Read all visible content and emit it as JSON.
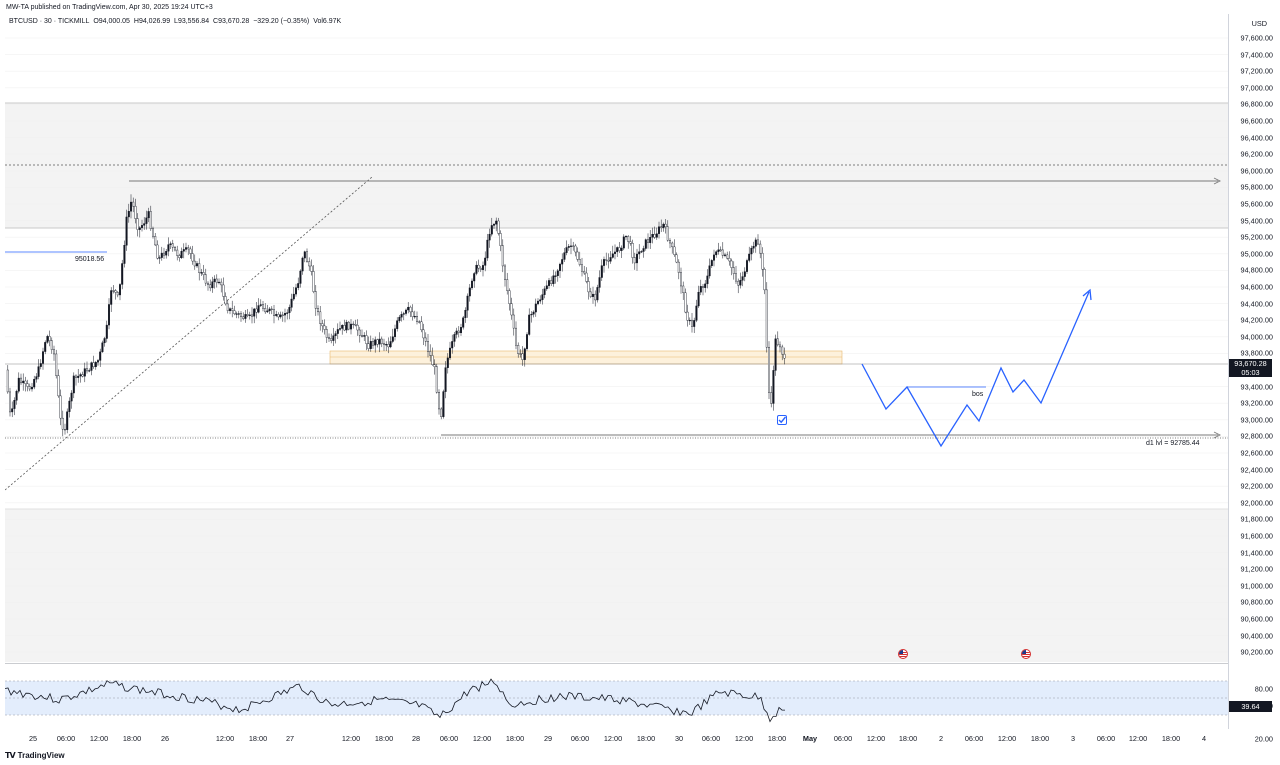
{
  "header": {
    "publisher": "MW-TA published on TradingView.com, Apr 30, 2025 19:24 UTC+3"
  },
  "legend": {
    "symbol": "BTCUSD · 30 · TICKMILL",
    "open": "O94,000.05",
    "high": "H94,026.99",
    "low": "L93,556.84",
    "close": "C93,670.28",
    "change": "−329.20 (−0.35%)",
    "volume": "Vol6.97K"
  },
  "price_axis": {
    "currency": "USD",
    "labels": [
      "97,600.00",
      "97,400.00",
      "97,200.00",
      "97,000.00",
      "96,800.00",
      "96,600.00",
      "96,400.00",
      "96,200.00",
      "96,000.00",
      "95,800.00",
      "95,600.00",
      "95,400.00",
      "95,200.00",
      "95,000.00",
      "94,800.00",
      "94,600.00",
      "94,400.00",
      "94,200.00",
      "94,000.00",
      "93,800.00",
      "93,400.00",
      "93,200.00",
      "93,000.00",
      "92,800.00",
      "92,600.00",
      "92,400.00",
      "92,200.00",
      "92,000.00",
      "91,800.00",
      "91,600.00",
      "91,400.00",
      "91,200.00",
      "91,000.00",
      "90,800.00",
      "90,600.00",
      "90,400.00",
      "90,200.00"
    ],
    "current_price": "93,670.28",
    "countdown": "05:03"
  },
  "rsi_axis": {
    "labels": [
      "80.00",
      "60.00",
      "20.00"
    ],
    "current_value": "39.64"
  },
  "time_axis": {
    "labels": [
      {
        "text": "25",
        "bold": false
      },
      {
        "text": "06:00",
        "bold": false
      },
      {
        "text": "12:00",
        "bold": false
      },
      {
        "text": "18:00",
        "bold": false
      },
      {
        "text": "26",
        "bold": false
      },
      {
        "text": "12:00",
        "bold": false
      },
      {
        "text": "18:00",
        "bold": false
      },
      {
        "text": "27",
        "bold": false
      },
      {
        "text": "12:00",
        "bold": false
      },
      {
        "text": "18:00",
        "bold": false
      },
      {
        "text": "28",
        "bold": false
      },
      {
        "text": "06:00",
        "bold": false
      },
      {
        "text": "12:00",
        "bold": false
      },
      {
        "text": "18:00",
        "bold": false
      },
      {
        "text": "29",
        "bold": false
      },
      {
        "text": "06:00",
        "bold": false
      },
      {
        "text": "12:00",
        "bold": false
      },
      {
        "text": "18:00",
        "bold": false
      },
      {
        "text": "30",
        "bold": false
      },
      {
        "text": "06:00",
        "bold": false
      },
      {
        "text": "12:00",
        "bold": false
      },
      {
        "text": "18:00",
        "bold": false
      },
      {
        "text": "May",
        "bold": true
      },
      {
        "text": "06:00",
        "bold": false
      },
      {
        "text": "12:00",
        "bold": false
      },
      {
        "text": "18:00",
        "bold": false
      },
      {
        "text": "2",
        "bold": false
      },
      {
        "text": "06:00",
        "bold": false
      },
      {
        "text": "12:00",
        "bold": false
      },
      {
        "text": "18:00",
        "bold": false
      },
      {
        "text": "3",
        "bold": false
      },
      {
        "text": "06:00",
        "bold": false
      },
      {
        "text": "12:00",
        "bold": false
      },
      {
        "text": "18:00",
        "bold": false
      },
      {
        "text": "4",
        "bold": false
      }
    ]
  },
  "annotations": {
    "level_label": "95018.56",
    "d1_label": "d1 lvl = 92785.44",
    "bos_label": "bos"
  },
  "footer": {
    "logo": "TradingView"
  },
  "colors": {
    "projection": "#2962ff",
    "zone_fill": "#fdf1dc",
    "zone_border": "#e9b96e",
    "rsi_fill": "#e3edfc",
    "candle": "#131722"
  },
  "icons": [
    "us-flag-icon",
    "checkbox-icon",
    "tradingview-logo-icon"
  ]
}
